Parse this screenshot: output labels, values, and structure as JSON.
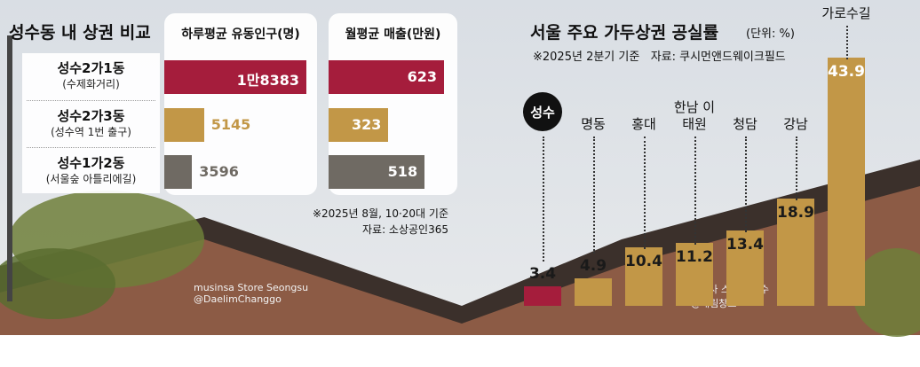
{
  "chart_data": [
    {
      "type": "hbar",
      "title": "성수동 내 상권 비교",
      "categories": [
        "성수2가1동",
        "성수2가3동",
        "성수1가2동"
      ],
      "category_notes": [
        "(수제화거리)",
        "(성수역 1번 출구)",
        "(서울숲 아틀리에길)"
      ],
      "colors": [
        "#a51d3c",
        "#c29747",
        "#6f6a63"
      ],
      "series": [
        {
          "name": "하루평균 유동인구(명)",
          "values": [
            18383,
            5145,
            3596
          ],
          "value_labels": [
            "1만8383",
            "5145",
            "3596"
          ]
        },
        {
          "name": "월평균 매출(만원)",
          "values": [
            623,
            323,
            518
          ]
        }
      ],
      "notes": [
        "※2025년 8월, 10·20대 기준",
        "자료: 소상공인365"
      ]
    },
    {
      "type": "column",
      "title": "서울 주요 가두상권 공실률",
      "unit": "(단위: %)",
      "subtitle": "※2025년 2분기 기준   자료: 쿠시먼앤드웨이크필드",
      "categories": [
        "성수",
        "명동",
        "홍대",
        "한남 이태원",
        "청담",
        "강남",
        "가로수길"
      ],
      "values": [
        3.4,
        4.9,
        10.4,
        11.2,
        13.4,
        18.9,
        43.9
      ],
      "colors": [
        "#a51d3c",
        "#c29747",
        "#c29747",
        "#c29747",
        "#c29747",
        "#c29747",
        "#c29747"
      ],
      "highlight": 0
    }
  ],
  "photo_signs": [
    "musinsa Store Seongsu @DaelimChanggo",
    "무신사 스토어 성수 @대림창고"
  ]
}
